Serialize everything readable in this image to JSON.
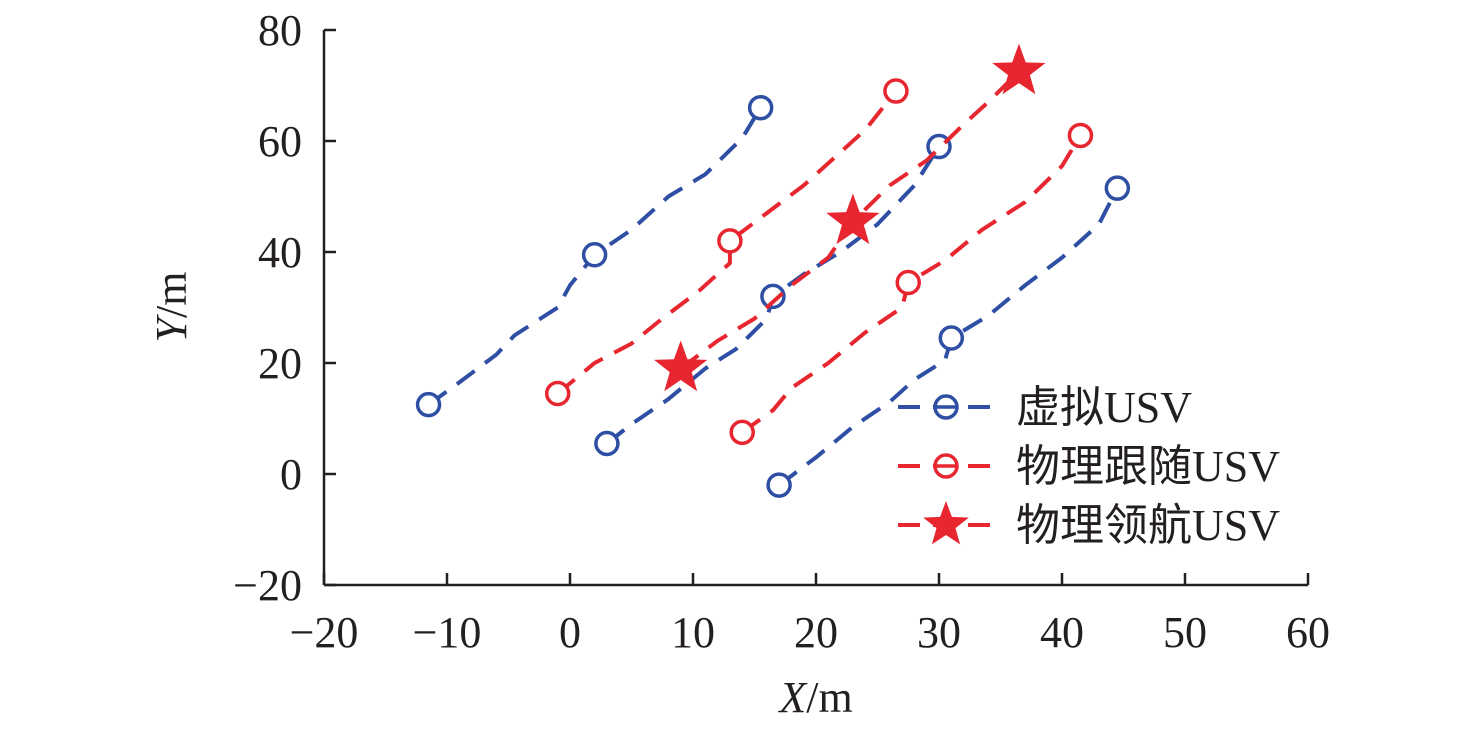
{
  "chart_data": {
    "type": "line",
    "xlabel": {
      "var": "X",
      "unit": "/m"
    },
    "ylabel": {
      "var": "Y",
      "unit": "/m"
    },
    "xlim": [
      -20,
      60
    ],
    "ylim": [
      -20,
      80
    ],
    "xticks": [
      -20,
      -10,
      0,
      10,
      20,
      30,
      40,
      50,
      60
    ],
    "yticks": [
      -20,
      0,
      20,
      40,
      60,
      80
    ],
    "grid": false,
    "legend_position": "bottom-right",
    "legend": [
      {
        "label": "虚拟USV",
        "color": "#2e4fa3",
        "marker": "circle"
      },
      {
        "label": "物理跟随USV",
        "color": "#e8262f",
        "marker": "circle"
      },
      {
        "label": "物理领航USV",
        "color": "#e8262f",
        "marker": "star"
      }
    ],
    "series": [
      {
        "group": "虚拟USV",
        "color": "#2e4fa3",
        "marker": "circle",
        "points": [
          [
            -11.5,
            12.5
          ],
          [
            -9,
            16.5
          ],
          [
            -6,
            21.5
          ],
          [
            -4.5,
            25
          ],
          [
            -1,
            30
          ],
          [
            0,
            34
          ],
          [
            2,
            39.5
          ],
          [
            5,
            44
          ],
          [
            8,
            50
          ],
          [
            11,
            54
          ],
          [
            14,
            60.5
          ],
          [
            15.5,
            66
          ]
        ],
        "marked": [
          [
            -11.5,
            12.5
          ],
          [
            2,
            39.5
          ],
          [
            15.5,
            66
          ]
        ]
      },
      {
        "group": "虚拟USV",
        "color": "#2e4fa3",
        "marker": "circle",
        "points": [
          [
            3,
            5.5
          ],
          [
            5,
            9
          ],
          [
            8,
            13.5
          ],
          [
            11,
            19
          ],
          [
            13.5,
            22.5
          ],
          [
            16,
            28
          ],
          [
            16.5,
            32
          ],
          [
            19,
            36
          ],
          [
            22,
            40
          ],
          [
            25,
            45
          ],
          [
            28,
            52
          ],
          [
            30,
            59
          ]
        ],
        "marked": [
          [
            3,
            5.5
          ],
          [
            16.5,
            32
          ],
          [
            30,
            59
          ]
        ]
      },
      {
        "group": "虚拟USV",
        "color": "#2e4fa3",
        "marker": "circle",
        "points": [
          [
            17,
            -2
          ],
          [
            20,
            3
          ],
          [
            23,
            8.5
          ],
          [
            26,
            13
          ],
          [
            28,
            17
          ],
          [
            30.5,
            20.5
          ],
          [
            31,
            24.5
          ],
          [
            34,
            28.5
          ],
          [
            37,
            34
          ],
          [
            40,
            39
          ],
          [
            43,
            45
          ],
          [
            44.5,
            51.5
          ]
        ],
        "marked": [
          [
            17,
            -2
          ],
          [
            31,
            24.5
          ],
          [
            44.5,
            51.5
          ]
        ]
      },
      {
        "group": "物理跟随USV",
        "color": "#e8262f",
        "marker": "circle",
        "points": [
          [
            -1,
            14.5
          ],
          [
            2,
            20
          ],
          [
            5,
            23.5
          ],
          [
            7.5,
            28
          ],
          [
            10.5,
            33
          ],
          [
            13,
            38
          ],
          [
            13,
            42
          ],
          [
            16,
            47
          ],
          [
            19,
            52
          ],
          [
            21,
            56
          ],
          [
            24,
            62
          ],
          [
            26.5,
            69
          ]
        ],
        "marked": [
          [
            -1,
            14.5
          ],
          [
            13,
            42
          ],
          [
            26.5,
            69
          ]
        ]
      },
      {
        "group": "物理跟随USV",
        "color": "#e8262f",
        "marker": "circle",
        "points": [
          [
            14,
            7.5
          ],
          [
            16.5,
            11.5
          ],
          [
            18,
            15.5
          ],
          [
            21,
            20
          ],
          [
            24,
            25.5
          ],
          [
            27,
            30
          ],
          [
            27.5,
            34.5
          ],
          [
            30.5,
            38.5
          ],
          [
            33.5,
            44
          ],
          [
            37,
            49
          ],
          [
            40,
            55.5
          ],
          [
            41.5,
            61
          ]
        ],
        "marked": [
          [
            14,
            7.5
          ],
          [
            27.5,
            34.5
          ],
          [
            41.5,
            61
          ]
        ]
      },
      {
        "group": "物理领航USV",
        "color": "#e8262f",
        "marker": "star",
        "points": [
          [
            9,
            19
          ],
          [
            12,
            24
          ],
          [
            15,
            28
          ],
          [
            18,
            34
          ],
          [
            21,
            39
          ],
          [
            23,
            45.5
          ],
          [
            26,
            52
          ],
          [
            29,
            56.5
          ],
          [
            32,
            63
          ],
          [
            34,
            67
          ],
          [
            36.5,
            72.5
          ]
        ],
        "marked": [
          [
            9,
            19
          ],
          [
            23,
            45.5
          ],
          [
            36.5,
            72.5
          ]
        ]
      }
    ]
  }
}
